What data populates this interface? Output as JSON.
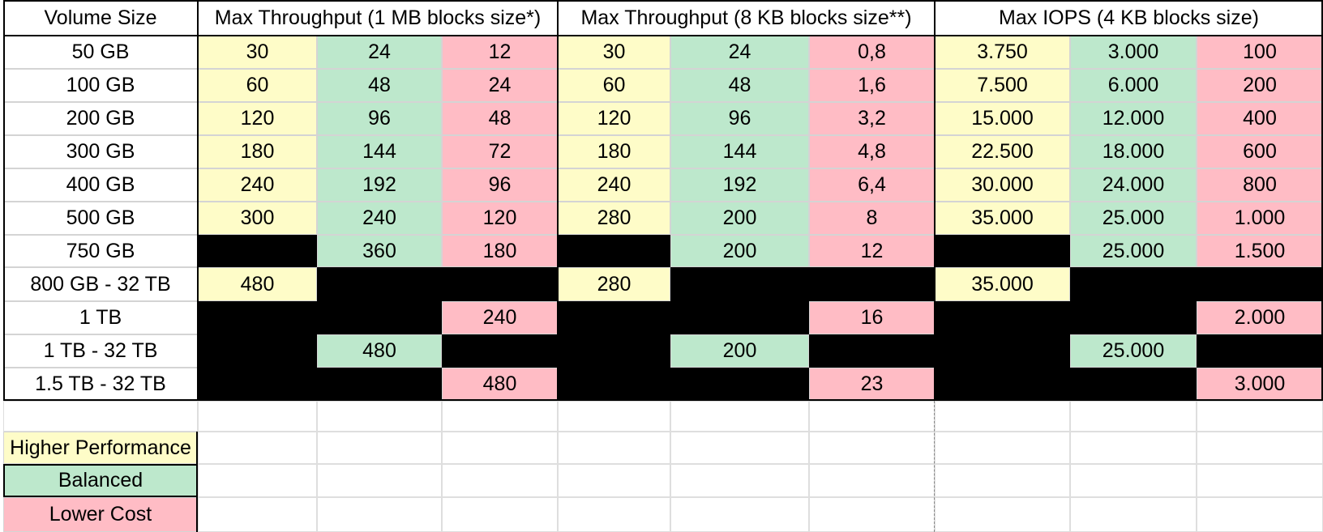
{
  "header": {
    "volume_size": "Volume Size",
    "throughput_1mb": "Max Throughput (1 MB blocks size*)",
    "throughput_8kb": "Max Throughput (8 KB blocks size**)",
    "iops_4kb": "Max IOPS (4 KB blocks size)"
  },
  "rows": [
    {
      "size": "50 GB",
      "values": [
        "30",
        "24",
        "12",
        "30",
        "24",
        "0,8",
        "3.750",
        "3.000",
        "100"
      ]
    },
    {
      "size": "100 GB",
      "values": [
        "60",
        "48",
        "24",
        "60",
        "48",
        "1,6",
        "7.500",
        "6.000",
        "200"
      ]
    },
    {
      "size": "200 GB",
      "values": [
        "120",
        "96",
        "48",
        "120",
        "96",
        "3,2",
        "15.000",
        "12.000",
        "400"
      ]
    },
    {
      "size": "300 GB",
      "values": [
        "180",
        "144",
        "72",
        "180",
        "144",
        "4,8",
        "22.500",
        "18.000",
        "600"
      ]
    },
    {
      "size": "400 GB",
      "values": [
        "240",
        "192",
        "96",
        "240",
        "192",
        "6,4",
        "30.000",
        "24.000",
        "800"
      ]
    },
    {
      "size": "500 GB",
      "values": [
        "300",
        "240",
        "120",
        "280",
        "200",
        "8",
        "35.000",
        "25.000",
        "1.000"
      ]
    },
    {
      "size": "750 GB",
      "values": [
        "",
        "360",
        "180",
        "",
        "200",
        "12",
        "",
        "25.000",
        "1.500"
      ]
    },
    {
      "size": "800 GB - 32 TB",
      "values": [
        "480",
        "",
        "",
        "280",
        "",
        "",
        "35.000",
        "",
        ""
      ]
    },
    {
      "size": "1 TB",
      "values": [
        "",
        "",
        "240",
        "",
        "",
        "16",
        "",
        "",
        "2.000"
      ]
    },
    {
      "size": "1 TB - 32 TB",
      "values": [
        "",
        "480",
        "",
        "",
        "200",
        "",
        "",
        "25.000",
        ""
      ]
    },
    {
      "size": "1.5 TB - 32 TB",
      "values": [
        "",
        "",
        "480",
        "",
        "",
        "23",
        "",
        "",
        "3.000"
      ]
    }
  ],
  "legend": [
    {
      "label": "Higher Performance",
      "color": "#fefcc8"
    },
    {
      "label": "Balanced",
      "color": "#bde8cc"
    },
    {
      "label": "Lower Cost",
      "color": "#ffbcc5"
    }
  ],
  "colors": {
    "higher_performance": "#fefcc8",
    "balanced": "#bde8cc",
    "lower_cost": "#ffbcc5",
    "unavailable": "#000000"
  }
}
